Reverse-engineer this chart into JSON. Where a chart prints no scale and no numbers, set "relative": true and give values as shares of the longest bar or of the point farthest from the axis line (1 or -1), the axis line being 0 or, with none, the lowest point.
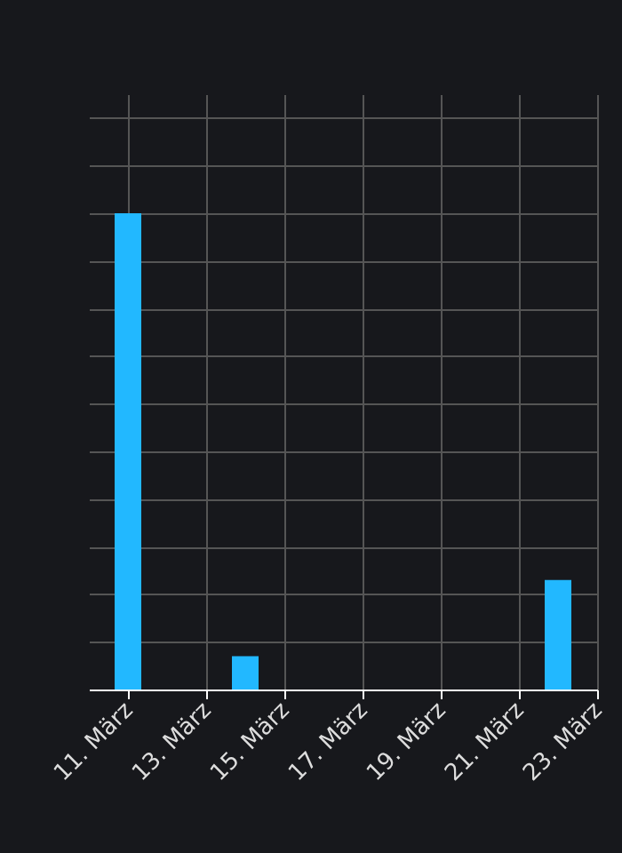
{
  "chart_data": {
    "type": "bar",
    "relative": true,
    "x": [
      "--03-11",
      "--03-14",
      "--03-22"
    ],
    "values": [
      1,
      0.07,
      0.23
    ],
    "color": "#22b8ff",
    "xlim": [
      "--03-10",
      "--03-23"
    ],
    "xticks": [
      {
        "value": "--03-11",
        "label": "11. März"
      },
      {
        "value": "--03-13",
        "label": "13. März"
      },
      {
        "value": "--03-15",
        "label": "15. März"
      },
      {
        "value": "--03-17",
        "label": "17. März"
      },
      {
        "value": "--03-19",
        "label": "19. März"
      },
      {
        "value": "--03-21",
        "label": "21. März"
      },
      {
        "value": "--03-23",
        "label": "23. März"
      }
    ],
    "grid": true
  }
}
